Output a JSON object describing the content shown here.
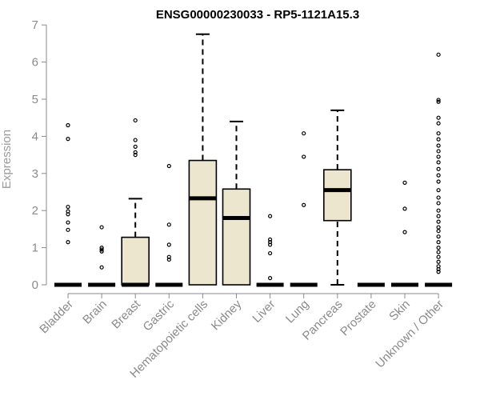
{
  "chart_data": {
    "type": "box",
    "title": "ENSG00000230033 - RP5-1121A15.3",
    "xlabel": "",
    "ylabel": "Expression",
    "ylim": [
      0,
      7
    ],
    "yticks": [
      0,
      1,
      2,
      3,
      4,
      5,
      6,
      7
    ],
    "box_color": "#ede6cf",
    "categories": [
      "Bladder",
      "Brain",
      "Breast",
      "Gastric",
      "Hematopoietic cells",
      "Kidney",
      "Liver",
      "Lung",
      "Pancreas",
      "Prostate",
      "Skin",
      "Unknown / Other"
    ],
    "boxes": [
      {
        "q1": 0,
        "median": 0,
        "q3": 0,
        "whisker_low": 0,
        "whisker_high": 0,
        "outliers": [
          4.3,
          3.93,
          2.1,
          1.98,
          1.9,
          1.68,
          1.48,
          1.15
        ]
      },
      {
        "q1": 0,
        "median": 0,
        "q3": 0,
        "whisker_low": 0,
        "whisker_high": 0,
        "outliers": [
          1.55,
          1.0,
          0.95,
          0.9,
          0.47
        ]
      },
      {
        "q1": 0,
        "median": 0,
        "q3": 1.28,
        "whisker_low": 0,
        "whisker_high": 2.32,
        "outliers": [
          4.43,
          3.9,
          3.72,
          3.57,
          3.5
        ]
      },
      {
        "q1": 0,
        "median": 0,
        "q3": 0,
        "whisker_low": 0,
        "whisker_high": 0,
        "outliers": [
          3.2,
          1.62,
          1.08,
          0.75,
          0.68
        ]
      },
      {
        "q1": 0,
        "median": 2.33,
        "q3": 3.35,
        "whisker_low": 0,
        "whisker_high": 6.75,
        "outliers": []
      },
      {
        "q1": 0,
        "median": 1.8,
        "q3": 2.58,
        "whisker_low": 0,
        "whisker_high": 4.4,
        "outliers": []
      },
      {
        "q1": 0,
        "median": 0,
        "q3": 0,
        "whisker_low": 0,
        "whisker_high": 0,
        "outliers": [
          1.85,
          1.22,
          1.15,
          1.08,
          0.85,
          0.18
        ]
      },
      {
        "q1": 0,
        "median": 0,
        "q3": 0,
        "whisker_low": 0,
        "whisker_high": 0,
        "outliers": [
          4.08,
          3.45,
          2.15
        ]
      },
      {
        "q1": 1.73,
        "median": 2.55,
        "q3": 3.1,
        "whisker_low": 0,
        "whisker_high": 4.7,
        "outliers": []
      },
      {
        "q1": 0,
        "median": 0,
        "q3": 0,
        "whisker_low": 0,
        "whisker_high": 0,
        "outliers": []
      },
      {
        "q1": 0,
        "median": 0,
        "q3": 0,
        "whisker_low": 0,
        "whisker_high": 0,
        "outliers": [
          2.75,
          2.05,
          1.42
        ]
      },
      {
        "q1": 0,
        "median": 0,
        "q3": 0,
        "whisker_low": 0,
        "whisker_high": 0,
        "outliers": [
          6.2,
          4.98,
          4.93,
          4.5,
          4.35,
          4.08,
          3.92,
          3.75,
          3.6,
          3.45,
          3.3,
          3.12,
          2.95,
          2.78,
          2.55,
          2.35,
          2.2,
          2.0,
          1.85,
          1.7,
          1.55,
          1.45,
          1.3,
          1.15,
          1.0,
          0.88,
          0.75,
          0.62,
          0.5,
          0.42,
          0.35
        ]
      }
    ]
  }
}
